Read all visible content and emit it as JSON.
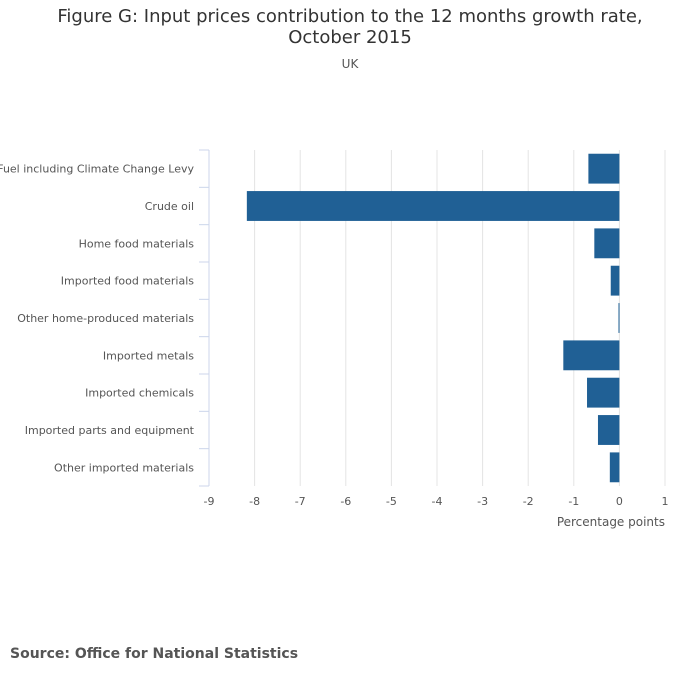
{
  "chart_data": {
    "type": "bar",
    "orientation": "horizontal",
    "title": "Figure G: Input prices contribution to the 12 months growth rate, October 2015",
    "subtitle": "UK",
    "xlabel": "Percentage points",
    "ylabel": "",
    "xlim": [
      -9,
      1
    ],
    "xticks": [
      "-9",
      "-8",
      "-7",
      "-6",
      "-5",
      "-4",
      "-3",
      "-2",
      "-1",
      "0",
      "1"
    ],
    "categories": [
      "Fuel including Climate Change Levy",
      "Crude oil",
      "Home food materials",
      "Imported food materials",
      "Other home-produced materials",
      "Imported metals",
      "Imported chemicals",
      "Imported parts and equipment",
      "Other imported materials"
    ],
    "values": [
      -0.68,
      -8.17,
      -0.55,
      -0.19,
      -0.02,
      -1.23,
      -0.71,
      -0.47,
      -0.21
    ],
    "bar_color": "#206095",
    "grid": true
  },
  "source": "Source: Office for National Statistics"
}
